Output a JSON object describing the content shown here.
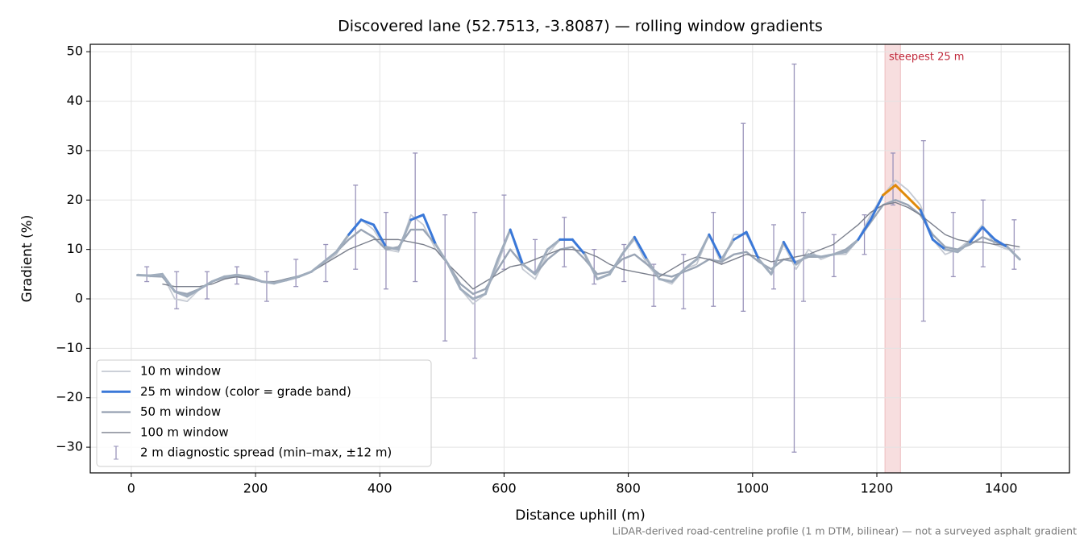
{
  "chart_data": {
    "type": "line",
    "title": "Discovered lane (52.7513, -3.8087) — rolling window gradients",
    "xlabel": "Distance uphill (m)",
    "ylabel": "Gradient (%)",
    "footnote": "LiDAR-derived road-centreline profile (1 m DTM, bilinear) — not a surveyed asphalt gradient",
    "xlim": [
      -66,
      1510
    ],
    "ylim": [
      -35.2,
      51.5
    ],
    "xticks": [
      0,
      200,
      400,
      600,
      800,
      1000,
      1200,
      1400
    ],
    "yticks": [
      {
        "value": -30,
        "label": "−30"
      },
      {
        "value": -20,
        "label": "−20"
      },
      {
        "value": -10,
        "label": "−10"
      },
      0,
      10,
      20,
      30,
      40,
      50
    ],
    "grid": true,
    "legend": "lower left",
    "x": [
      10,
      30,
      50,
      70,
      90,
      110,
      130,
      150,
      170,
      190,
      210,
      230,
      250,
      270,
      290,
      310,
      330,
      350,
      370,
      390,
      410,
      430,
      450,
      470,
      490,
      510,
      530,
      550,
      570,
      590,
      610,
      630,
      650,
      670,
      690,
      710,
      730,
      750,
      770,
      790,
      810,
      830,
      850,
      870,
      890,
      910,
      930,
      950,
      970,
      990,
      1010,
      1030,
      1050,
      1070,
      1090,
      1110,
      1130,
      1150,
      1170,
      1190,
      1210,
      1230,
      1250,
      1270,
      1290,
      1310,
      1330,
      1350,
      1370,
      1390,
      1410,
      1430
    ],
    "series": [
      {
        "name": "10 m window",
        "color": "#c5cad3",
        "values": [
          5,
          4.5,
          5,
          0,
          -0.5,
          2,
          3.5,
          4.5,
          5,
          4.5,
          3.5,
          3,
          4,
          4.5,
          5.5,
          7,
          9,
          13,
          16,
          14,
          10,
          9.5,
          17,
          15,
          10,
          7,
          2,
          -1,
          1,
          7,
          14,
          6,
          4,
          9,
          12,
          12,
          9,
          4,
          5,
          9,
          12,
          7,
          4,
          3,
          6,
          7,
          13,
          7,
          13,
          13,
          8,
          5,
          11,
          6,
          10,
          8,
          9,
          9,
          12,
          17,
          21,
          24,
          22,
          19,
          12,
          9,
          10,
          12,
          15,
          11,
          10,
          10
        ]
      },
      {
        "name": "25 m window (color = grade band)",
        "color": "#3a78d8",
        "values": [
          4.8,
          4.7,
          5,
          1.5,
          0.5,
          2,
          3.5,
          4.5,
          4.8,
          4.5,
          3.5,
          3.2,
          3.8,
          4.5,
          5.5,
          7.5,
          9.5,
          13,
          16,
          15,
          10.5,
          10,
          16,
          17,
          11,
          7,
          2,
          0,
          1,
          8,
          14,
          7,
          5,
          10,
          12,
          12,
          9,
          4,
          5,
          9,
          12.5,
          8,
          4,
          3.5,
          6,
          8,
          13,
          8,
          12,
          13.5,
          8,
          5,
          11.5,
          7,
          9,
          8.5,
          9,
          9.5,
          12,
          16,
          21,
          23,
          20.5,
          18,
          12,
          10,
          9.5,
          11.5,
          14.5,
          12,
          10.5,
          8
        ],
        "colors": [
          "#a0adbd",
          "#a0adbd",
          "#a0adbd",
          "#a0adbd",
          "#a0adbd",
          "#a0adbd",
          "#a0adbd",
          "#a0adbd",
          "#a0adbd",
          "#a0adbd",
          "#a0adbd",
          "#a0adbd",
          "#a0adbd",
          "#a0adbd",
          "#a0adbd",
          "#a0adbd",
          "#a0adbd",
          "#3a78d8",
          "#3a78d8",
          "#3a78d8",
          "#a0adbd",
          "#a0adbd",
          "#3a78d8",
          "#3a78d8",
          "#a0adbd",
          "#a0adbd",
          "#a0adbd",
          "#a0adbd",
          "#a0adbd",
          "#a0adbd",
          "#3a78d8",
          "#a0adbd",
          "#a0adbd",
          "#a0adbd",
          "#3a78d8",
          "#3a78d8",
          "#a0adbd",
          "#a0adbd",
          "#a0adbd",
          "#a0adbd",
          "#3a78d8",
          "#a0adbd",
          "#a0adbd",
          "#a0adbd",
          "#a0adbd",
          "#a0adbd",
          "#3a78d8",
          "#a0adbd",
          "#3a78d8",
          "#3a78d8",
          "#a0adbd",
          "#a0adbd",
          "#3a78d8",
          "#a0adbd",
          "#a0adbd",
          "#a0adbd",
          "#a0adbd",
          "#a0adbd",
          "#3a78d8",
          "#3a78d8",
          "#e08a0a",
          "#e08a0a",
          "#e08a0a",
          "#3a78d8",
          "#3a78d8",
          "#a0adbd",
          "#a0adbd",
          "#3a78d8",
          "#3a78d8",
          "#3a78d8",
          "#a0adbd",
          "#a0adbd"
        ]
      },
      {
        "name": "50 m window",
        "color": "#9aa5b5",
        "values": [
          null,
          4.6,
          4.5,
          1.5,
          1,
          2,
          3.5,
          4.3,
          4.5,
          4.2,
          3.5,
          3.3,
          4,
          4.6,
          5.5,
          7.5,
          9.5,
          12,
          14,
          12.5,
          10,
          10.5,
          14,
          14,
          11,
          7,
          3,
          1,
          2,
          6,
          10,
          7,
          5,
          8,
          10,
          10.5,
          8,
          5,
          5.5,
          8,
          9,
          7,
          5,
          4.5,
          5.5,
          6.5,
          8,
          7.5,
          9,
          9.5,
          7.5,
          6,
          8,
          7.5,
          8.5,
          8.5,
          9,
          10,
          12,
          15.5,
          19,
          20,
          19,
          17,
          13,
          10.5,
          10,
          11,
          12.5,
          11.5,
          10.5,
          null
        ]
      },
      {
        "name": "100 m window",
        "color": "#7a7f8c",
        "values": [
          null,
          null,
          3,
          2.5,
          2.5,
          2.5,
          3,
          4,
          4.5,
          4,
          3.5,
          3.5,
          4,
          4.5,
          5.5,
          7,
          8.5,
          10,
          11,
          12,
          12,
          12,
          11.5,
          11,
          10,
          7,
          4.5,
          2,
          3.5,
          5,
          6.5,
          7,
          8,
          9,
          10,
          10,
          9.5,
          8.5,
          7,
          6,
          5.5,
          5,
          4.5,
          6,
          7.5,
          8.5,
          8,
          7,
          8,
          9,
          8.5,
          7.5,
          8,
          8.5,
          9,
          10,
          11,
          13,
          15,
          17.5,
          19,
          19.5,
          18.5,
          17,
          15,
          13,
          12,
          11.5,
          11.5,
          11,
          11,
          10.5
        ]
      }
    ],
    "errorbars": {
      "name": "2 m diagnostic spread (min–max, ±12 m)",
      "color": "#9a94bb",
      "x": [
        25,
        73,
        122,
        170,
        218,
        265,
        313,
        361,
        410,
        457,
        505,
        553,
        600,
        650,
        697,
        745,
        793,
        841,
        889,
        937,
        985,
        1034,
        1067,
        1082,
        1131,
        1180,
        1226,
        1275,
        1323,
        1371,
        1421
      ],
      "low": [
        3.5,
        -2,
        0,
        3,
        -0.5,
        2.5,
        3.5,
        6,
        2,
        3.5,
        -8.5,
        -12,
        6,
        5.5,
        6.5,
        3,
        3.5,
        -1.5,
        -2,
        -1.5,
        -2.5,
        2,
        -31,
        -0.5,
        4.5,
        9,
        19,
        -4.5,
        4.5,
        6.5,
        6
      ],
      "high": [
        6.5,
        5.5,
        5.5,
        6.5,
        5.5,
        8,
        11,
        23,
        17.5,
        29.5,
        17,
        17.5,
        21,
        12,
        16.5,
        10,
        11,
        7,
        9,
        17.5,
        35.5,
        15,
        47.5,
        17.5,
        13,
        17,
        29.5,
        32,
        17.5,
        20,
        16
      ]
    },
    "span": [
      1213,
      1238
    ],
    "span_color": "#e8a0a4",
    "span_label": "steepest 25 m"
  }
}
